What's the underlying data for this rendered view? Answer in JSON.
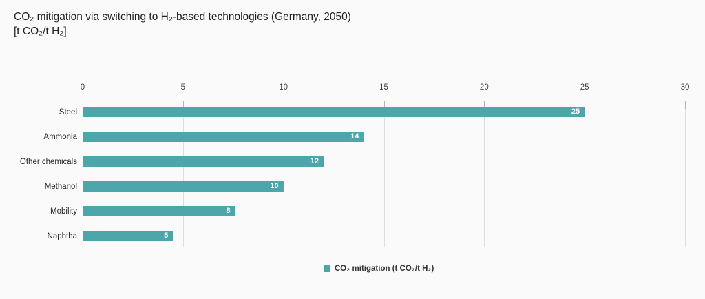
{
  "title": "CO₂ mitigation via switching to H₂-based technologies (Germany, 2050)",
  "subtitle": "[t CO₂/t H₂]",
  "legend": {
    "label": "CO₂ mitigation (t CO₂/t H₂)"
  },
  "colors": {
    "bar": "#4da6aa",
    "background": "#fafafa",
    "gridline": "#dedede",
    "axis_line": "#b3b3b3",
    "value_label": "#ffffff",
    "text": "#262626"
  },
  "chart_data": {
    "type": "bar",
    "orientation": "horizontal",
    "title": "CO₂ mitigation via switching to H₂-based technologies (Germany, 2050)",
    "unit_label": "[t CO₂/t H₂]",
    "categories": [
      "Steel",
      "Ammonia",
      "Other chemicals",
      "Methanol",
      "Mobility",
      "Naphtha"
    ],
    "values": [
      25,
      14,
      12,
      10,
      8,
      5
    ],
    "bar_lengths": [
      25,
      14,
      12,
      10,
      7.6,
      4.5
    ],
    "x_ticks": [
      0,
      5,
      10,
      15,
      20,
      25,
      30
    ],
    "xlim": [
      0,
      30
    ],
    "axis_position": "top",
    "grid": true,
    "legend_entries": [
      "CO₂ mitigation (t CO₂/t H₂)"
    ],
    "legend_position": "bottom-center"
  }
}
